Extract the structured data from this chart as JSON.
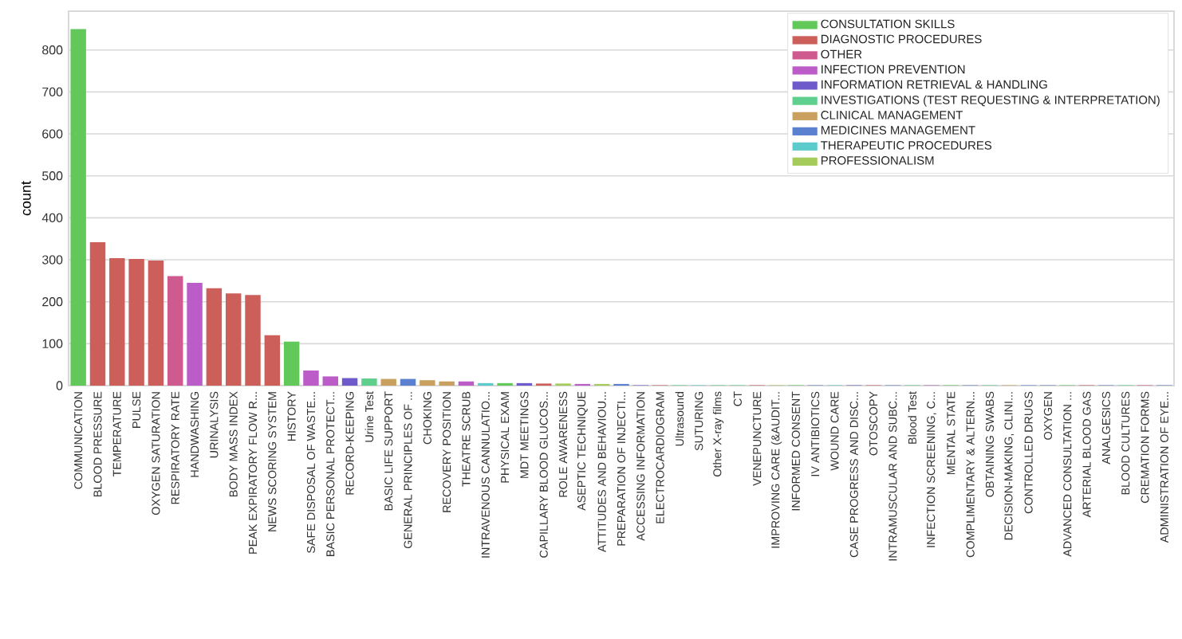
{
  "chart_data": {
    "type": "bar",
    "ylabel": "count",
    "categories": [
      "COMMUNICATION",
      "BLOOD PRESSURE",
      "TEMPERATURE",
      "PULSE",
      "OXYGEN SATURATION",
      "RESPIRATORY RATE",
      "HANDWASHING",
      "URINALYSIS",
      "BODY MASS INDEX",
      "PEAK EXPIRATORY FLOW R...",
      "NEWS SCORING SYSTEM",
      "HISTORY",
      "SAFE DISPOSAL OF WASTE...",
      "BASIC PERSONAL PROTECT...",
      "RECORD-KEEPING",
      "Urine Test",
      "BASIC LIFE SUPPORT",
      "GENERAL PRINCIPLES OF ...",
      "CHOKING",
      "RECOVERY POSITION",
      "THEATRE SCRUB",
      "INTRAVENOUS CANNULATIO...",
      "PHYSICAL EXAM",
      "MDT MEETINGS",
      "CAPILLARY BLOOD GLUCOS...",
      "ROLE AWARENESS",
      "ASEPTIC TECHNIQUE",
      "ATTITUDES AND BEHAVIOU...",
      "PREPARATION OF INJECTI...",
      "ACCESSING INFORMATION",
      "ELECTROCARDIOGRAM",
      "Ultrasound",
      "SUTURING",
      "Other X-ray films",
      "CT",
      "VENEPUNCTURE",
      "IMPROVING CARE (&AUDIT...",
      "INFORMED CONSENT",
      "IV ANTIBIOTICS",
      "WOUND CARE",
      "CASE PROGRESS AND DISC...",
      "OTOSCOPY",
      "INTRAMUSCULAR AND SUBC...",
      "Blood Test",
      "INFECTION SCREENING, C...",
      "MENTAL STATE",
      "COMPLIMENTARY & ALTERN...",
      "OBTAINING SWABS",
      "DECISION-MAKING, CLINI...",
      "CONTROLLED DRUGS",
      "OXYGEN",
      "ADVANCED CONSULTATION ...",
      "ARTERIAL BLOOD GAS",
      "ANALGESICS",
      "BLOOD CULTURES",
      "CREMATION FORMS",
      "ADMINISTRATION OF EYE..."
    ],
    "series": [
      {
        "name": "CONSULTATION SKILLS",
        "color": "#62c85a",
        "values": [
          850,
          null,
          null,
          null,
          null,
          null,
          null,
          null,
          null,
          null,
          null,
          105,
          null,
          null,
          null,
          null,
          null,
          null,
          null,
          null,
          null,
          null,
          6,
          null,
          null,
          null,
          null,
          null,
          null,
          null,
          null,
          null,
          null,
          null,
          null,
          null,
          null,
          1,
          null,
          null,
          null,
          null,
          null,
          null,
          null,
          1,
          null,
          null,
          null,
          null,
          null,
          1,
          null,
          null,
          null,
          null,
          null
        ]
      },
      {
        "name": "DIAGNOSTIC PROCEDURES",
        "color": "#cd5f5a",
        "values": [
          null,
          342,
          304,
          302,
          298,
          null,
          null,
          232,
          220,
          216,
          120,
          null,
          null,
          null,
          null,
          null,
          null,
          null,
          null,
          null,
          null,
          null,
          null,
          null,
          5,
          null,
          null,
          null,
          null,
          null,
          1,
          null,
          null,
          null,
          null,
          1,
          null,
          null,
          null,
          null,
          null,
          1,
          null,
          null,
          null,
          null,
          null,
          null,
          null,
          null,
          null,
          null,
          1,
          null,
          null,
          null,
          null
        ]
      },
      {
        "name": "OTHER",
        "color": "#cf5a90",
        "values": [
          null,
          null,
          null,
          null,
          null,
          261,
          null,
          null,
          null,
          null,
          null,
          null,
          null,
          null,
          null,
          null,
          null,
          null,
          null,
          null,
          null,
          null,
          null,
          null,
          null,
          null,
          null,
          null,
          null,
          null,
          null,
          null,
          null,
          null,
          null,
          null,
          null,
          null,
          null,
          null,
          null,
          null,
          null,
          null,
          null,
          null,
          null,
          null,
          null,
          null,
          null,
          null,
          null,
          null,
          null,
          1,
          null
        ]
      },
      {
        "name": "INFECTION PREVENTION",
        "color": "#bb5cc8",
        "values": [
          null,
          null,
          null,
          null,
          null,
          null,
          245,
          null,
          null,
          null,
          null,
          null,
          36,
          22,
          null,
          null,
          null,
          null,
          null,
          null,
          10,
          null,
          null,
          null,
          null,
          null,
          4,
          null,
          null,
          null,
          null,
          null,
          null,
          null,
          null,
          null,
          null,
          null,
          null,
          null,
          null,
          null,
          null,
          null,
          1,
          null,
          null,
          null,
          null,
          null,
          null,
          null,
          null,
          null,
          null,
          null,
          null
        ]
      },
      {
        "name": "INFORMATION RETRIEVAL & HANDLING",
        "color": "#6e5acb",
        "values": [
          null,
          null,
          null,
          null,
          null,
          null,
          null,
          null,
          null,
          null,
          null,
          null,
          null,
          null,
          18,
          null,
          null,
          null,
          null,
          null,
          null,
          null,
          null,
          6,
          null,
          null,
          null,
          null,
          null,
          1,
          null,
          null,
          null,
          null,
          null,
          null,
          null,
          null,
          null,
          null,
          1,
          null,
          null,
          null,
          null,
          null,
          null,
          null,
          null,
          null,
          null,
          null,
          null,
          null,
          null,
          null,
          null
        ]
      },
      {
        "name": "INVESTIGATIONS (TEST REQUESTING & INTERPRETATION)",
        "color": "#5ecf8c",
        "values": [
          null,
          null,
          null,
          null,
          null,
          null,
          null,
          null,
          null,
          null,
          null,
          null,
          null,
          null,
          null,
          17,
          null,
          null,
          null,
          null,
          null,
          null,
          null,
          null,
          null,
          null,
          null,
          null,
          null,
          null,
          null,
          1,
          null,
          1,
          1,
          null,
          null,
          null,
          null,
          null,
          null,
          null,
          null,
          1,
          null,
          null,
          null,
          1,
          null,
          null,
          null,
          null,
          null,
          null,
          1,
          null,
          null
        ]
      },
      {
        "name": "CLINICAL MANAGEMENT",
        "color": "#c9a060",
        "values": [
          null,
          null,
          null,
          null,
          null,
          null,
          null,
          null,
          null,
          null,
          null,
          null,
          null,
          null,
          null,
          null,
          16,
          null,
          13,
          10,
          null,
          null,
          null,
          null,
          null,
          null,
          null,
          null,
          null,
          null,
          null,
          null,
          null,
          null,
          null,
          null,
          null,
          null,
          null,
          null,
          null,
          null,
          null,
          null,
          null,
          null,
          null,
          null,
          1,
          null,
          null,
          null,
          null,
          null,
          null,
          null,
          null
        ]
      },
      {
        "name": "MEDICINES MANAGEMENT",
        "color": "#5b80cf",
        "values": [
          null,
          null,
          null,
          null,
          null,
          null,
          null,
          null,
          null,
          null,
          null,
          null,
          null,
          null,
          null,
          null,
          null,
          16,
          null,
          null,
          null,
          null,
          null,
          null,
          null,
          null,
          null,
          null,
          4,
          null,
          null,
          null,
          null,
          null,
          null,
          null,
          null,
          null,
          1,
          null,
          null,
          null,
          1,
          null,
          null,
          null,
          1,
          null,
          null,
          1,
          1,
          null,
          null,
          1,
          null,
          null,
          1
        ]
      },
      {
        "name": "THERAPEUTIC PROCEDURES",
        "color": "#5ccbcc",
        "values": [
          null,
          null,
          null,
          null,
          null,
          null,
          null,
          null,
          null,
          null,
          null,
          null,
          null,
          null,
          null,
          null,
          null,
          null,
          null,
          null,
          null,
          6,
          null,
          null,
          null,
          null,
          null,
          null,
          null,
          null,
          null,
          null,
          1,
          null,
          null,
          null,
          null,
          null,
          null,
          1,
          null,
          null,
          null,
          null,
          null,
          null,
          null,
          null,
          null,
          null,
          null,
          null,
          null,
          null,
          null,
          null,
          null
        ]
      },
      {
        "name": "PROFESSIONALISM",
        "color": "#a5cc5a",
        "values": [
          null,
          null,
          null,
          null,
          null,
          null,
          null,
          null,
          null,
          null,
          null,
          null,
          null,
          null,
          null,
          null,
          null,
          null,
          null,
          null,
          null,
          null,
          null,
          null,
          null,
          5,
          null,
          4,
          null,
          null,
          null,
          null,
          null,
          null,
          null,
          null,
          1,
          null,
          null,
          null,
          null,
          null,
          null,
          null,
          null,
          null,
          null,
          null,
          null,
          null,
          null,
          null,
          null,
          null,
          null,
          null,
          null
        ]
      }
    ],
    "ylim": [
      0,
      892.5
    ],
    "yticks": [
      0,
      100,
      200,
      300,
      400,
      500,
      600,
      700,
      800
    ],
    "grid": "y",
    "legend": "top right"
  }
}
